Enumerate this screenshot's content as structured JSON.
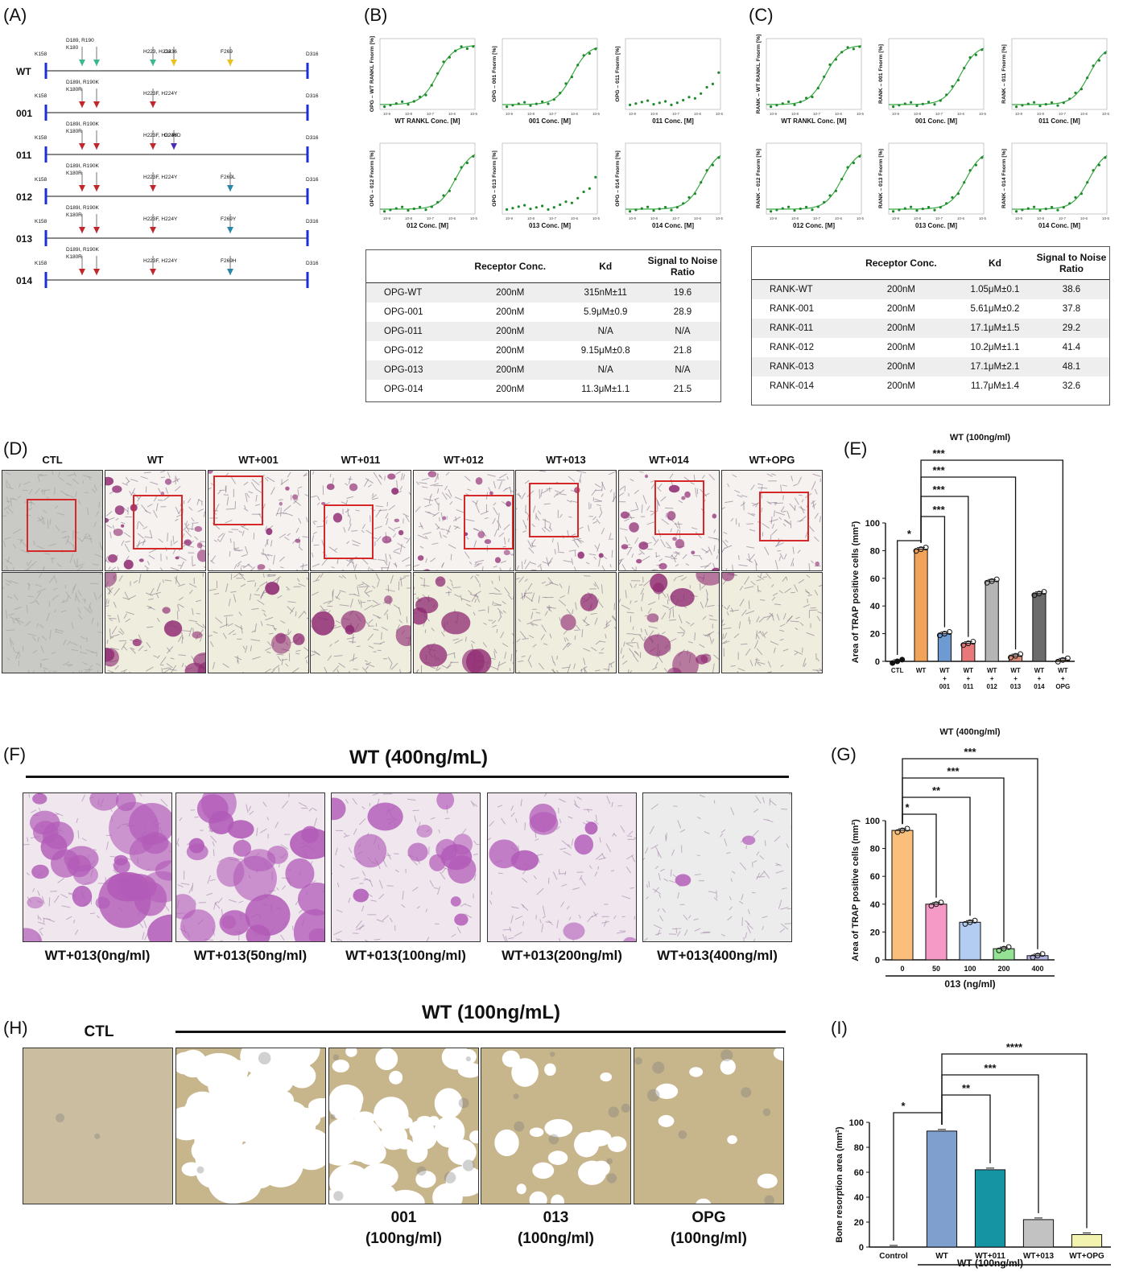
{
  "panel_labels": {
    "A": "(A)",
    "B": "(B)",
    "C": "(C)",
    "D": "(D)",
    "E": "(E)",
    "F": "(F)",
    "G": "(G)",
    "H": "(H)",
    "I": "(I)"
  },
  "panel_a": {
    "rows": [
      {
        "name": "WT",
        "left": "K158",
        "right": "D316",
        "muts": [
          {
            "label": "D189, R190\nK180",
            "color": "#39b990"
          },
          {
            "label": "",
            "color": "#39b990"
          },
          {
            "label": "H223, H224",
            "color": "#39b990"
          },
          {
            "label": "G236",
            "color": "#e8c21a"
          },
          {
            "label": "F269",
            "color": "#e8c21a"
          }
        ]
      },
      {
        "name": "001",
        "left": "K158",
        "right": "D316",
        "muts": [
          {
            "label": "D189I, R190K\nK180R",
            "color": "#c0262c"
          },
          {
            "label": "",
            "color": "#c0262c"
          },
          {
            "label": "H223F, H224Y",
            "color": "#c0262c"
          }
        ]
      },
      {
        "name": "011",
        "left": "K158",
        "right": "D316",
        "muts": [
          {
            "label": "D189I, R190K\nK180R",
            "color": "#c0262c"
          },
          {
            "label": "",
            "color": "#c0262c"
          },
          {
            "label": "H223F, H224Y",
            "color": "#c0262c"
          },
          {
            "label": "G236D",
            "color": "#4b2bb5"
          }
        ]
      },
      {
        "name": "012",
        "left": "K158",
        "right": "D316",
        "muts": [
          {
            "label": "D189I, R190K\nK180R",
            "color": "#c0262c"
          },
          {
            "label": "",
            "color": "#c0262c"
          },
          {
            "label": "H223F, H224Y",
            "color": "#c0262c"
          },
          {
            "label": "F269L",
            "color": "#2a86a8"
          }
        ]
      },
      {
        "name": "013",
        "left": "K158",
        "right": "D316",
        "muts": [
          {
            "label": "D189I, R190K\nK180R",
            "color": "#c0262c"
          },
          {
            "label": "",
            "color": "#c0262c"
          },
          {
            "label": "H223F, H224Y",
            "color": "#c0262c"
          },
          {
            "label": "F269Y",
            "color": "#2a86a8"
          }
        ]
      },
      {
        "name": "014",
        "left": "K158",
        "right": "D316",
        "muts": [
          {
            "label": "D189I, R190K\nK180R",
            "color": "#c0262c"
          },
          {
            "label": "",
            "color": "#c0262c"
          },
          {
            "label": "H223F, H224Y",
            "color": "#c0262c"
          },
          {
            "label": "F269H",
            "color": "#2a86a8"
          }
        ]
      }
    ]
  },
  "panel_b": {
    "plots": [
      {
        "ylabel": "OPG – WT RANKL Fnorm [%]",
        "xlabel": "WT RANKL Conc. [M]",
        "fit": true,
        "ec50": -6.0
      },
      {
        "ylabel": "OPG – 001 Fnorm [%]",
        "xlabel": "001 Conc. [M]",
        "fit": true,
        "ec50": -5.3
      },
      {
        "ylabel": "OPG – 011 Fnorm [%]",
        "xlabel": "011 Conc. [M]",
        "fit": false,
        "ec50": -4.0
      },
      {
        "ylabel": "OPG – 012 Fnorm [%]",
        "xlabel": "012 Conc. [M]",
        "fit": true,
        "ec50": -5.0
      },
      {
        "ylabel": "OPG – 013 Fnorm [%]",
        "xlabel": "013 Conc. [M]",
        "fit": false,
        "ec50": -4.0
      },
      {
        "ylabel": "OPG – 014 Fnorm [%]",
        "xlabel": "014 Conc. [M]",
        "fit": true,
        "ec50": -4.9
      }
    ],
    "table": {
      "headers": [
        "",
        "Receptor Conc.",
        "Kd",
        "Signal to Noise Ratio"
      ],
      "rows": [
        [
          "OPG-WT",
          "200nM",
          "315nM±11",
          "19.6"
        ],
        [
          "OPG-001",
          "200nM",
          "5.9μM±0.9",
          "28.9"
        ],
        [
          "OPG-011",
          "200nM",
          "N/A",
          "N/A"
        ],
        [
          "OPG-012",
          "200nM",
          "9.15μM±0.8",
          "21.8"
        ],
        [
          "OPG-013",
          "200nM",
          "N/A",
          "N/A"
        ],
        [
          "OPG-014",
          "200nM",
          "11.3μM±1.1",
          "21.5"
        ]
      ]
    }
  },
  "panel_c": {
    "plots": [
      {
        "ylabel": "RANK – WT RANKL Fnorm [%]",
        "xlabel": "WT RANKL Conc. [M]",
        "fit": true,
        "ec50": -5.9
      },
      {
        "ylabel": "RANK – 001 Fnorm [%]",
        "xlabel": "001 Conc. [M]",
        "fit": true,
        "ec50": -5.2
      },
      {
        "ylabel": "RANK – 011 Fnorm [%]",
        "xlabel": "011 Conc. [M]",
        "fit": true,
        "ec50": -4.9
      },
      {
        "ylabel": "RANK – 012 Fnorm [%]",
        "xlabel": "012 Conc. [M]",
        "fit": true,
        "ec50": -5.0
      },
      {
        "ylabel": "RANK – 013 Fnorm [%]",
        "xlabel": "013 Conc. [M]",
        "fit": true,
        "ec50": -4.9
      },
      {
        "ylabel": "RANK – 014 Fnorm [%]",
        "xlabel": "014 Conc. [M]",
        "fit": true,
        "ec50": -4.9
      }
    ],
    "table": {
      "headers": [
        "",
        "Receptor Conc.",
        "Kd",
        "Signal to Noise Ratio"
      ],
      "rows": [
        [
          "RANK-WT",
          "200nM",
          "1.05μM±0.1",
          "38.6"
        ],
        [
          "RANK-001",
          "200nM",
          "5.61μM±0.2",
          "37.8"
        ],
        [
          "RANK-011",
          "200nM",
          "17.1μM±1.5",
          "29.2"
        ],
        [
          "RANK-012",
          "200nM",
          "10.2μM±1.1",
          "41.4"
        ],
        [
          "RANK-013",
          "200nM",
          "17.1μM±2.1",
          "48.1"
        ],
        [
          "RANK-014",
          "200nM",
          "11.7μM±1.4",
          "32.6"
        ]
      ]
    }
  },
  "panel_d": {
    "labels": [
      "CTL",
      "WT",
      "WT+001",
      "WT+011",
      "WT+012",
      "WT+013",
      "WT+014",
      "WT+OPG"
    ],
    "stain": [
      0,
      0.85,
      0.35,
      0.45,
      0.6,
      0.15,
      0.8,
      0.05
    ]
  },
  "panel_f": {
    "title": "WT (400ng/mL)",
    "labels": [
      "WT+013(0ng/ml)",
      "WT+013(50ng/ml)",
      "WT+013(100ng/ml)",
      "WT+013(200ng/ml)",
      "WT+013(400ng/ml)"
    ],
    "stain": [
      1.0,
      0.75,
      0.45,
      0.25,
      0.08
    ]
  },
  "panel_h": {
    "ctl_label": "CTL",
    "title": "WT (100ng/mL)",
    "labels": [
      "",
      "",
      "001\n(100ng/ml)",
      "013\n(100ng/ml)",
      "OPG\n(100ng/ml)"
    ],
    "resorption": [
      0,
      0.9,
      0.6,
      0.25,
      0.12
    ]
  },
  "chart_data": [
    {
      "type": "bar",
      "title": "WT (100ng/ml)",
      "ylabel": "Area of TRAP positive cells (mm²)",
      "xlabel": "",
      "ylim": [
        0,
        100
      ],
      "yticks": [
        0,
        20,
        40,
        60,
        80,
        100
      ],
      "categories": [
        "CTL",
        "WT",
        "WT\n+\n001",
        "WT\n+\n011",
        "WT\n+\n012",
        "WT\n+\n013",
        "WT\n+\n014",
        "WT\n+\nOPG"
      ],
      "values": [
        0,
        81,
        20,
        13,
        58,
        4,
        49,
        1
      ],
      "colors": [
        "#111111",
        "#f2a35a",
        "#6d9bd1",
        "#e8797a",
        "#b5b5b5",
        "#d98c7a",
        "#6b6b6b",
        "#c9a37a"
      ],
      "significance": [
        {
          "from": 0,
          "to": 1,
          "label": "*"
        },
        {
          "from": 1,
          "to": 2,
          "label": "***"
        },
        {
          "from": 1,
          "to": 3,
          "label": "***"
        },
        {
          "from": 1,
          "to": 5,
          "label": "***"
        },
        {
          "from": 1,
          "to": 7,
          "label": "***"
        }
      ]
    },
    {
      "type": "bar",
      "title": "WT (400ng/ml)",
      "ylabel": "Area of TRAP positive cells (mm²)",
      "xlabel": "013 (ng/ml)",
      "ylim": [
        0,
        100
      ],
      "yticks": [
        0,
        20,
        40,
        60,
        80,
        100
      ],
      "categories": [
        "0",
        "50",
        "100",
        "200",
        "400"
      ],
      "values": [
        93,
        40,
        27,
        8,
        3
      ],
      "colors": [
        "#fbbf7c",
        "#f59ac7",
        "#b3ccf2",
        "#93e393",
        "#b3b3e3"
      ],
      "significance": [
        {
          "from": 0,
          "to": 1,
          "label": "*"
        },
        {
          "from": 0,
          "to": 2,
          "label": "**"
        },
        {
          "from": 0,
          "to": 3,
          "label": "***"
        },
        {
          "from": 0,
          "to": 4,
          "label": "***"
        }
      ]
    },
    {
      "type": "bar",
      "title": "",
      "ylabel": "Bone resorption area (mm²)",
      "xlabel": "WT (100ng/ml)",
      "ylim": [
        0,
        100
      ],
      "yticks": [
        0,
        20,
        40,
        60,
        80,
        100
      ],
      "categories": [
        "Control",
        "WT",
        "WT+011",
        "WT+013",
        "WT+OPG"
      ],
      "values": [
        0,
        93,
        62,
        22,
        10
      ],
      "colors": [
        "#ffffff",
        "#7f9fcf",
        "#1594a3",
        "#c2c2c2",
        "#f3f3b0"
      ],
      "significance": [
        {
          "from": 0,
          "to": 1,
          "label": "*"
        },
        {
          "from": 1,
          "to": 2,
          "label": "**"
        },
        {
          "from": 1,
          "to": 3,
          "label": "***"
        },
        {
          "from": 1,
          "to": 4,
          "label": "****"
        }
      ]
    }
  ]
}
